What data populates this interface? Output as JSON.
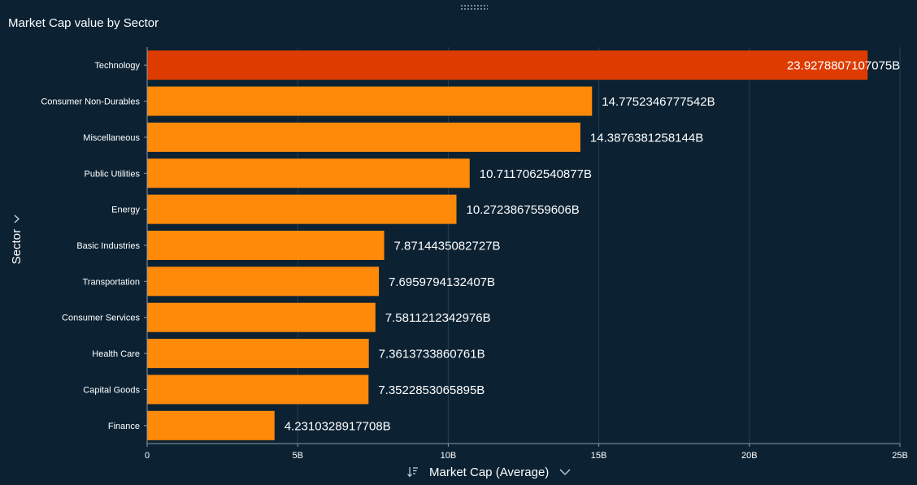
{
  "visual": {
    "title": "Market Cap value by Sector",
    "colors": {
      "background": "#0c2233",
      "bar": "#ff8a0a",
      "bar_highlight": "#de3b00",
      "gridline": "#1f4053",
      "axis": "#8a99a5",
      "text": "#ffffff"
    },
    "icons": {
      "drag": "drag-handle-icon",
      "ylabel_expand": "chevron-right-icon",
      "sort": "sort-descending-icon",
      "xlabel_dropdown": "chevron-down-icon"
    }
  },
  "chart_data": {
    "type": "bar",
    "orientation": "horizontal",
    "title": "Market Cap value by Sector",
    "xlabel": "Market Cap (Average)",
    "ylabel": "Sector",
    "categories": [
      "Technology",
      "Consumer Non-Durables",
      "Miscellaneous",
      "Public Utilities",
      "Energy",
      "Basic Industries",
      "Transportation",
      "Consumer Services",
      "Health Care",
      "Capital Goods",
      "Finance"
    ],
    "values": [
      23.9278807107075,
      14.7752346777542,
      14.3876381258144,
      10.7117062540877,
      10.2723867559606,
      7.8714435082727,
      7.6959794132407,
      7.5811212342976,
      7.3613733860761,
      7.3522853065895,
      4.2310328917708
    ],
    "value_unit": "B",
    "data_labels": [
      "23.9278807107075B",
      "14.7752346777542B",
      "14.3876381258144B",
      "10.7117062540877B",
      "10.2723867559606B",
      "7.8714435082727B",
      "7.6959794132407B",
      "7.5811212342976B",
      "7.3613733860761B",
      "7.3522853065895B",
      "4.2310328917708B"
    ],
    "highlighted_index": 0,
    "xlim": [
      0,
      25
    ],
    "x_ticks": [
      0,
      5,
      10,
      15,
      20,
      25
    ],
    "x_tick_labels": [
      "0",
      "5B",
      "10B",
      "15B",
      "20B",
      "25B"
    ],
    "grid": "vertical",
    "legend": "none"
  }
}
